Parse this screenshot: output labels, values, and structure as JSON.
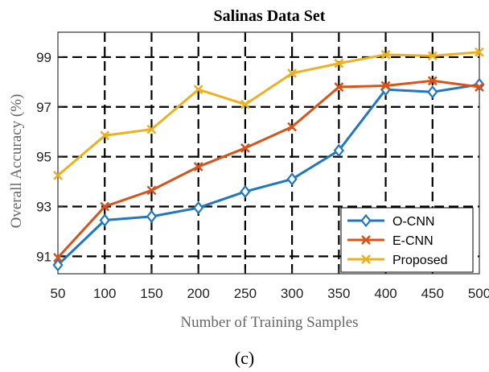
{
  "chart_data": {
    "type": "line",
    "title": "Salinas Data Set",
    "xlabel": "Number of Training Samples",
    "ylabel": "Overall Accuracy (%)",
    "x": [
      50,
      100,
      150,
      200,
      250,
      300,
      350,
      400,
      450,
      500
    ],
    "xlim": [
      50,
      500
    ],
    "ylim": [
      90.3,
      100
    ],
    "yticks": [
      91,
      93,
      95,
      97,
      99
    ],
    "grid": true,
    "legend_position": "bottom-right",
    "series": [
      {
        "name": "O-CNN",
        "color": "#1f77c4",
        "marker": "diamond",
        "values": [
          90.65,
          92.45,
          92.6,
          92.95,
          93.6,
          94.1,
          95.25,
          97.7,
          97.6,
          97.9
        ]
      },
      {
        "name": "E-CNN",
        "color": "#d95319",
        "marker": "x",
        "values": [
          90.95,
          93.0,
          93.65,
          94.6,
          95.35,
          96.2,
          97.8,
          97.85,
          98.05,
          97.8
        ]
      },
      {
        "name": "Proposed",
        "color": "#edb120",
        "marker": "x",
        "values": [
          94.25,
          95.85,
          96.1,
          97.7,
          97.1,
          98.35,
          98.75,
          99.1,
          99.05,
          99.2
        ]
      }
    ]
  },
  "caption": "(c)"
}
